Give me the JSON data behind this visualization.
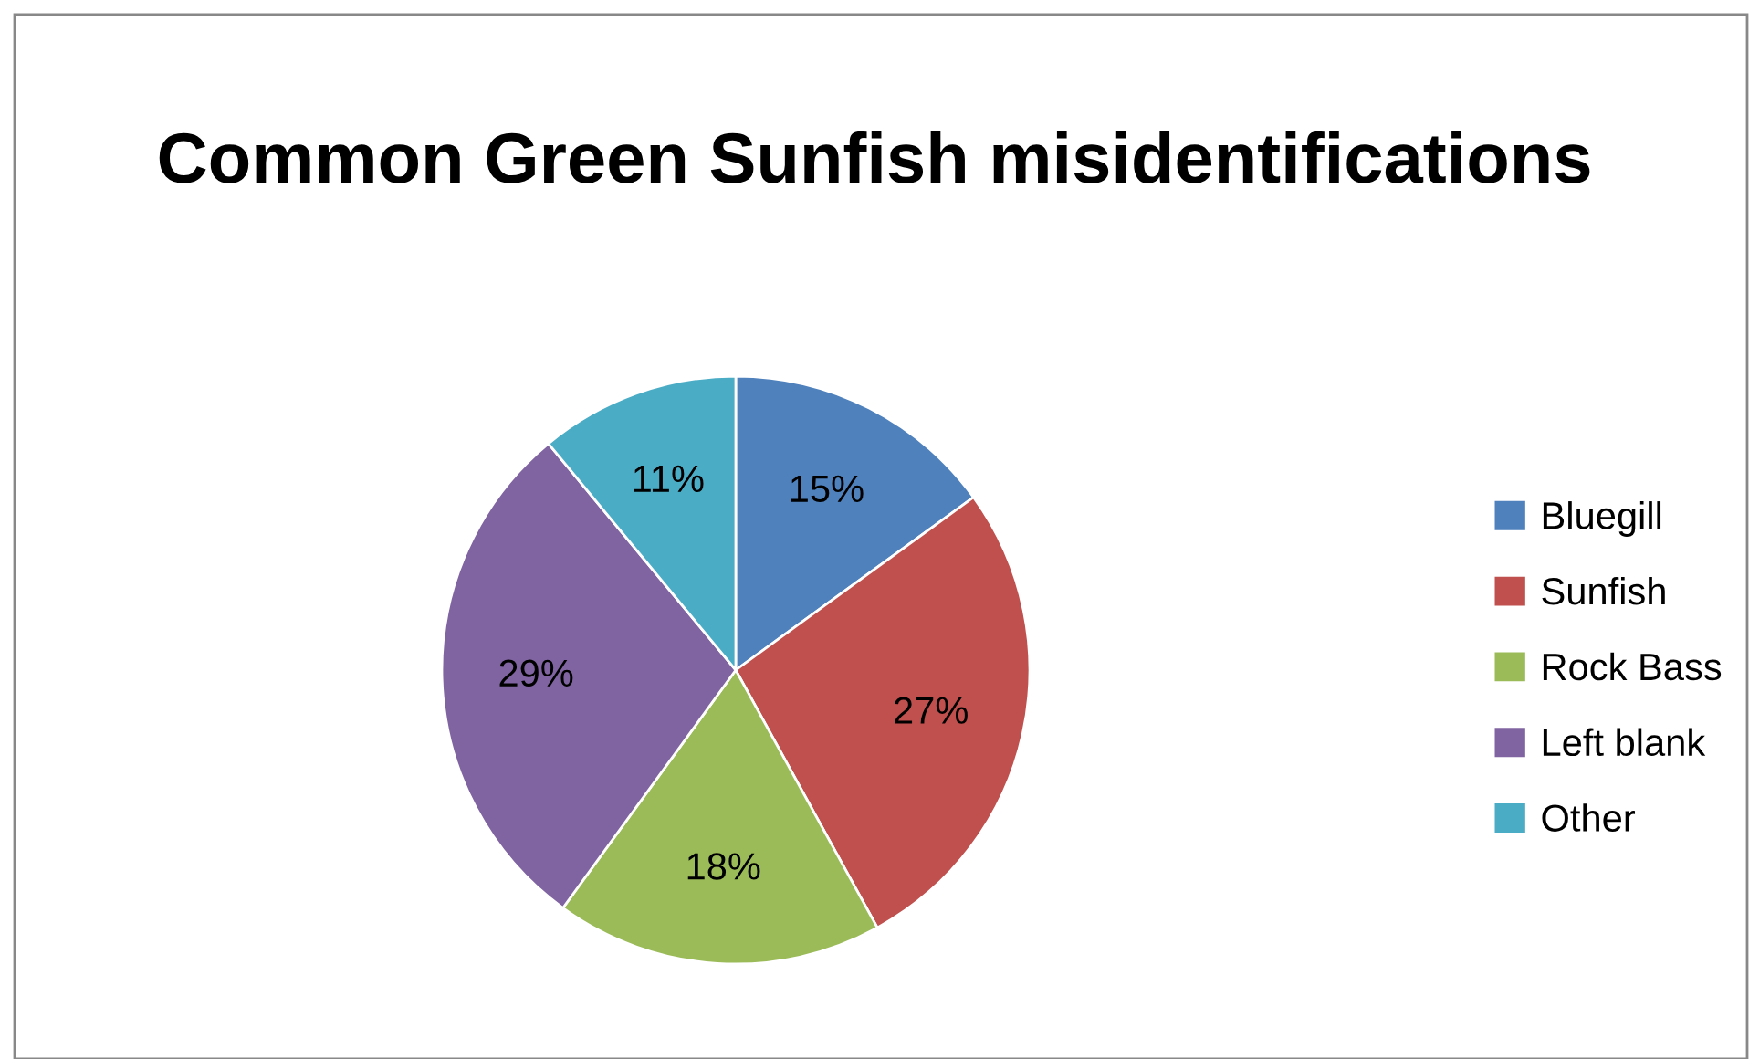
{
  "chart_data": {
    "type": "pie",
    "title": "Common Green Sunfish misidentifications",
    "categories": [
      "Bluegill",
      "Sunfish",
      "Rock Bass",
      "Left blank",
      "Other"
    ],
    "values": [
      15,
      27,
      18,
      29,
      11
    ],
    "colors": [
      "#4f81bd",
      "#c0504d",
      "#9bbb59",
      "#8064a2",
      "#4bacc6"
    ],
    "value_labels": [
      "15%",
      "27%",
      "18%",
      "29%",
      "11%"
    ],
    "legend": "right"
  }
}
